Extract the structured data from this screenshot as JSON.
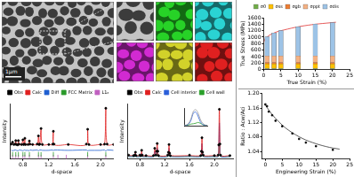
{
  "figure": {
    "sem_image": {
      "scale_bar": "1μm"
    },
    "eds_maps": {
      "colors": [
        "#27d227",
        "#2ad3d3",
        "#d22ad2",
        "#d2d22a",
        "#e02020"
      ]
    }
  },
  "chart_data": [
    {
      "type": "scatter",
      "x_label": "d-space",
      "y_label": "Intensity",
      "xlim": [
        0.6,
        2.2
      ],
      "xticks": [
        0.8,
        1.2,
        1.6,
        {
          "value": 2,
          "label": "2.0"
        }
      ],
      "ylim": [
        -32,
        110
      ],
      "tick_labels": "x",
      "legend": "top",
      "grid": false,
      "series": [
        {
          "name": "Obs",
          "color": "#000000",
          "marker": "circle",
          "x": [
            0.62,
            0.64,
            0.66,
            0.68,
            0.69,
            0.7,
            0.72,
            0.73,
            0.74,
            0.78,
            0.8,
            0.81,
            0.82,
            0.83,
            0.84,
            0.88,
            0.9,
            0.91,
            0.95,
            1.02,
            1.04,
            1.05,
            1.06,
            1.08,
            1.1,
            1.2,
            1.26,
            1.27,
            1.28,
            1.5,
            1.78,
            1.8,
            1.82,
            2.0,
            2.06,
            2.08,
            2.1,
            2.2
          ],
          "values": [
            6,
            11,
            5,
            6,
            15,
            5,
            4,
            15,
            6,
            5,
            17,
            5,
            6,
            21,
            5,
            5,
            14,
            6,
            5,
            6,
            27,
            5,
            6,
            46,
            5,
            5,
            6,
            39,
            6,
            5,
            6,
            44,
            5,
            5,
            6,
            98,
            6,
            5
          ]
        },
        {
          "name": "Calc",
          "color": "#e02020",
          "line_style": "solid",
          "x": [
            0.62,
            0.64,
            0.66,
            0.68,
            0.69,
            0.7,
            0.72,
            0.73,
            0.74,
            0.78,
            0.8,
            0.81,
            0.82,
            0.83,
            0.84,
            0.88,
            0.9,
            0.91,
            0.95,
            1.02,
            1.04,
            1.05,
            1.06,
            1.08,
            1.1,
            1.2,
            1.26,
            1.27,
            1.28,
            1.5,
            1.78,
            1.8,
            1.82,
            2.0,
            2.06,
            2.08,
            2.1,
            2.2
          ],
          "values": [
            5,
            12,
            5,
            5,
            14,
            5,
            5,
            16,
            5,
            5,
            18,
            5,
            5,
            20,
            5,
            5,
            15,
            5,
            5,
            5,
            28,
            5,
            5,
            45,
            5,
            5,
            5,
            40,
            5,
            5,
            5,
            45,
            5,
            5,
            5,
            100,
            5,
            5
          ]
        },
        {
          "name": "Diff",
          "color": "#1f5fd0",
          "line_style": "solid",
          "x": [
            0.62,
            0.64,
            0.66,
            0.68,
            0.69,
            0.7,
            0.72,
            0.73,
            0.74,
            0.78,
            0.8,
            0.81,
            0.82,
            0.83,
            0.84,
            0.88,
            0.9,
            0.91,
            0.95,
            1.02,
            1.04,
            1.05,
            1.06,
            1.08,
            1.1,
            1.2,
            1.26,
            1.27,
            1.28,
            1.5,
            1.78,
            1.8,
            1.82,
            2.0,
            2.06,
            2.08,
            2.1,
            2.2
          ],
          "values": [
            -9,
            -11,
            -10,
            -9,
            -9,
            -10,
            -11,
            -11,
            -9,
            -10,
            -11,
            -10,
            -9,
            -9,
            -10,
            -10,
            -11,
            -9,
            -10,
            -9,
            -11,
            -10,
            -9,
            -9,
            -10,
            -10,
            -9,
            -11,
            -9,
            -10,
            -9,
            -11,
            -10,
            -10,
            -9,
            -12,
            -9,
            -10
          ]
        },
        {
          "name": "FCC Matrix",
          "color": "#2a9a2a",
          "marker": "tick",
          "x": [
            0.64,
            0.69,
            0.73,
            0.8,
            0.83,
            0.9,
            1.04,
            1.08,
            1.27,
            1.8,
            2.08
          ],
          "values": [
            -20,
            -20,
            -20,
            -20,
            -20,
            -20,
            -20,
            -20,
            -20,
            -20,
            -20
          ]
        },
        {
          "name": "L1₂",
          "color": "#c060c0",
          "marker": "tick",
          "x": [
            0.64,
            0.69,
            0.73,
            0.8,
            0.83,
            0.9,
            1.04,
            1.08,
            1.27,
            1.34,
            1.47,
            1.8,
            2.08
          ],
          "values": [
            -27,
            -27,
            -27,
            -27,
            -27,
            -27,
            -27,
            -27,
            -27,
            -27,
            -27,
            -27,
            -27
          ]
        }
      ]
    },
    {
      "type": "scatter",
      "x_label": "d-space",
      "y_label": "Intensity",
      "xlim": [
        0.6,
        2.3
      ],
      "xticks": [
        0.8,
        1.2,
        1.6,
        {
          "value": 2,
          "label": "2.0"
        }
      ],
      "ylim": [
        -5,
        110
      ],
      "tick_labels": "x",
      "legend": "top",
      "grid": false,
      "series": [
        {
          "name": "Obs",
          "color": "#000000",
          "marker": "circle",
          "x": [
            0.62,
            0.7,
            0.72,
            0.73,
            0.74,
            0.8,
            0.82,
            0.83,
            0.84,
            0.9,
            1.02,
            1.04,
            1.06,
            1.07,
            1.08,
            1.09,
            1.1,
            1.25,
            1.26,
            1.27,
            1.28,
            1.29,
            1.6,
            1.78,
            1.79,
            1.8,
            1.81,
            1.82,
            2.0,
            2.06,
            2.07,
            2.08,
            2.09,
            2.1,
            2.25
          ],
          "values": [
            3,
            2,
            3,
            9,
            2,
            3,
            2,
            13,
            3,
            2,
            2,
            17,
            3,
            11,
            27,
            11,
            2,
            3,
            9,
            25,
            7,
            2,
            3,
            2,
            11,
            39,
            9,
            3,
            2,
            3,
            24,
            98,
            26,
            3,
            2
          ]
        },
        {
          "name": "Calc",
          "color": "#e02020",
          "line_style": "solid",
          "x": [
            0.62,
            0.7,
            0.72,
            0.73,
            0.74,
            0.8,
            0.82,
            0.83,
            0.84,
            0.9,
            1.02,
            1.04,
            1.06,
            1.07,
            1.08,
            1.09,
            1.1,
            1.25,
            1.26,
            1.27,
            1.28,
            1.29,
            1.6,
            1.78,
            1.79,
            1.8,
            1.81,
            1.82,
            2.0,
            2.06,
            2.07,
            2.08,
            2.09,
            2.1,
            2.25
          ],
          "values": [
            2,
            2,
            2,
            10,
            2,
            2,
            2,
            12,
            2,
            2,
            2,
            18,
            2,
            10,
            28,
            10,
            2,
            2,
            8,
            26,
            8,
            2,
            2,
            2,
            10,
            40,
            10,
            2,
            2,
            2,
            25,
            100,
            25,
            2,
            2
          ]
        },
        {
          "name": "Cell interior",
          "color": "#2b5fd9",
          "line_style": "solid",
          "x": [
            0.62,
            0.7,
            0.72,
            0.73,
            0.74,
            0.8,
            0.82,
            0.83,
            0.84,
            0.9,
            1.02,
            1.04,
            1.06,
            1.07,
            1.08,
            1.09,
            1.1,
            1.25,
            1.26,
            1.27,
            1.28,
            1.29,
            1.6,
            1.78,
            1.79,
            1.8,
            1.81,
            1.82,
            2.0,
            2.06,
            2.07,
            2.08,
            2.09,
            2.1,
            2.25
          ],
          "values": [
            0,
            0,
            0,
            6,
            0,
            0,
            0,
            7,
            0,
            0,
            0,
            11,
            0,
            6,
            18,
            6,
            0,
            0,
            5,
            17,
            5,
            0,
            0,
            0,
            6,
            27,
            6,
            0,
            0,
            0,
            15,
            70,
            15,
            0,
            0
          ]
        },
        {
          "name": "Cell wall",
          "color": "#2aa02a",
          "line_style": "solid",
          "x": [
            0.62,
            0.7,
            0.72,
            0.73,
            0.74,
            0.8,
            0.82,
            0.83,
            0.84,
            0.9,
            1.02,
            1.04,
            1.06,
            1.07,
            1.08,
            1.09,
            1.1,
            1.25,
            1.26,
            1.27,
            1.28,
            1.29,
            1.6,
            1.78,
            1.79,
            1.8,
            1.81,
            1.82,
            2.0,
            2.06,
            2.07,
            2.08,
            2.09,
            2.1,
            2.25
          ],
          "values": [
            0,
            0,
            0,
            3,
            0,
            0,
            0,
            3,
            0,
            0,
            0,
            5,
            0,
            3,
            8,
            3,
            0,
            0,
            2,
            7,
            2,
            0,
            0,
            0,
            3,
            11,
            3,
            0,
            0,
            0,
            8,
            28,
            8,
            0,
            0
          ]
        }
      ]
    },
    {
      "type": "line",
      "xlim": [
        0,
        10
      ],
      "ylim": [
        0,
        110
      ],
      "tick_labels": false,
      "grid": false,
      "series": [
        {
          "color": "#9a9a9a",
          "line_style": "solid",
          "x": [
            0,
            1,
            2,
            3,
            4,
            5,
            6,
            7,
            8,
            9,
            10
          ],
          "values": [
            2,
            5,
            15,
            45,
            90,
            100,
            80,
            40,
            15,
            5,
            2
          ]
        },
        {
          "color": "#2b5fd9",
          "line_style": "solid",
          "x": [
            0,
            1,
            2,
            3,
            4,
            5,
            6,
            7,
            8,
            9,
            10
          ],
          "values": [
            1,
            3,
            10,
            35,
            78,
            85,
            60,
            25,
            8,
            3,
            1
          ]
        },
        {
          "color": "#2aa02a",
          "line_style": "solid",
          "x": [
            0,
            1,
            2,
            3,
            4,
            5,
            6,
            7,
            8,
            9,
            10
          ],
          "values": [
            1,
            2,
            5,
            10,
            12,
            15,
            20,
            15,
            7,
            2,
            1
          ]
        }
      ]
    },
    {
      "type": "bar",
      "stacked": true,
      "x_label": "True Strain (%)",
      "y_label": "True Stress (MPa)",
      "xlim": [
        0,
        25
      ],
      "xticks": [
        0,
        5,
        10,
        15,
        20,
        25
      ],
      "ylim": [
        0,
        1600
      ],
      "yticks": [
        0,
        200,
        400,
        600,
        800,
        1000,
        1200,
        1400,
        1600
      ],
      "legend": "top",
      "grid": false,
      "series": [
        {
          "name": "σ0",
          "color": "#70ad47",
          "x": [
            1,
            3,
            5,
            10,
            15,
            20
          ],
          "values": [
            30,
            30,
            30,
            30,
            30,
            30
          ]
        },
        {
          "name": "σss",
          "color": "#ffc000",
          "x": [
            1,
            3,
            5,
            10,
            15,
            20
          ],
          "values": [
            140,
            140,
            140,
            140,
            140,
            140
          ]
        },
        {
          "name": "σgb",
          "color": "#ed7d31",
          "x": [
            1,
            3,
            5,
            10,
            15,
            20
          ],
          "values": [
            50,
            50,
            50,
            50,
            50,
            50
          ]
        },
        {
          "name": "σppt",
          "color": "#f4b183",
          "x": [
            1,
            3,
            5,
            10,
            15,
            20
          ],
          "values": [
            200,
            200,
            200,
            200,
            200,
            200
          ]
        },
        {
          "name": "σdis",
          "color": "#9dc3e6",
          "x": [
            1,
            3,
            5,
            10,
            15,
            20
          ],
          "values": [
            590,
            710,
            780,
            900,
            980,
            1030
          ]
        },
        {
          "type": "line",
          "color": "#e03030",
          "line_style": "solid",
          "x": [
            0,
            0.5,
            1,
            2,
            3,
            4,
            5,
            6,
            8,
            10,
            12,
            14,
            15,
            16,
            18,
            20,
            21
          ],
          "values": [
            850,
            960,
            1010,
            1080,
            1130,
            1170,
            1200,
            1225,
            1275,
            1320,
            1355,
            1385,
            1400,
            1410,
            1430,
            1450,
            1460
          ]
        }
      ]
    },
    {
      "type": "scatter",
      "x_label": "Engineering Strain (%)",
      "y_label": "Ratio : Acw/Aci",
      "xlim": [
        -1,
        25
      ],
      "xticks": [
        0,
        5,
        10,
        15,
        20,
        25
      ],
      "ylim": [
        1.02,
        1.2
      ],
      "yticks": [
        1.04,
        1.08,
        1.12,
        1.16,
        {
          "value": 1.2,
          "label": "1.20"
        }
      ],
      "grid": false,
      "series": [
        {
          "color": "#000000",
          "marker": "square",
          "x": [
            0,
            0.5,
            1,
            2,
            3,
            5,
            8,
            10,
            12,
            15,
            20
          ],
          "values": [
            1.17,
            1.165,
            1.15,
            1.14,
            1.125,
            1.11,
            1.09,
            1.075,
            1.065,
            1.055,
            1.045
          ]
        },
        {
          "color": "#333333",
          "line_style": "solid",
          "x": [
            0,
            2,
            4,
            6,
            8,
            10,
            12,
            14,
            16,
            18,
            20,
            22
          ],
          "values": [
            1.168,
            1.142,
            1.122,
            1.105,
            1.092,
            1.081,
            1.072,
            1.065,
            1.059,
            1.054,
            1.05,
            1.047
          ]
        }
      ]
    }
  ]
}
